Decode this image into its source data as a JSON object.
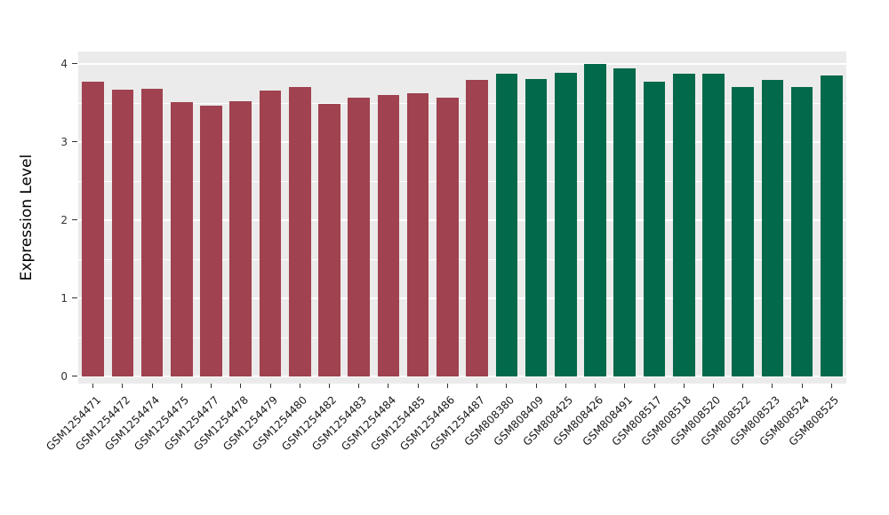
{
  "chart_data": {
    "type": "bar",
    "title": "",
    "xlabel": "",
    "ylabel": "Expression Level",
    "ylim": [
      0,
      4.15
    ],
    "yticks": [
      "0",
      "1",
      "2",
      "3",
      "4"
    ],
    "legend": "none",
    "grid": "white major and minor gridlines on gray panel",
    "panel_background": "#EBEBEB",
    "gridline_color": "#FFFFFF",
    "axis_text_color": "#333333",
    "groups": [
      {
        "name": "GSM1254-series",
        "color": "#A0424F"
      },
      {
        "name": "GSM808-series",
        "color": "#03694B"
      }
    ],
    "bars": [
      {
        "label": "GSM1254471",
        "value": 3.77,
        "group": 0
      },
      {
        "label": "GSM1254472",
        "value": 3.67,
        "group": 0
      },
      {
        "label": "GSM1254474",
        "value": 3.68,
        "group": 0
      },
      {
        "label": "GSM1254475",
        "value": 3.51,
        "group": 0
      },
      {
        "label": "GSM1254477",
        "value": 3.47,
        "group": 0
      },
      {
        "label": "GSM1254478",
        "value": 3.52,
        "group": 0
      },
      {
        "label": "GSM1254479",
        "value": 3.66,
        "group": 0
      },
      {
        "label": "GSM1254480",
        "value": 3.71,
        "group": 0
      },
      {
        "label": "GSM1254482",
        "value": 3.49,
        "group": 0
      },
      {
        "label": "GSM1254483",
        "value": 3.57,
        "group": 0
      },
      {
        "label": "GSM1254484",
        "value": 3.6,
        "group": 0
      },
      {
        "label": "GSM1254485",
        "value": 3.62,
        "group": 0
      },
      {
        "label": "GSM1254486",
        "value": 3.57,
        "group": 0
      },
      {
        "label": "GSM1254487",
        "value": 3.8,
        "group": 0
      },
      {
        "label": "GSM808380",
        "value": 3.87,
        "group": 1
      },
      {
        "label": "GSM808409",
        "value": 3.81,
        "group": 1
      },
      {
        "label": "GSM808425",
        "value": 3.89,
        "group": 1
      },
      {
        "label": "GSM808426",
        "value": 4.0,
        "group": 1
      },
      {
        "label": "GSM808491",
        "value": 3.94,
        "group": 1
      },
      {
        "label": "GSM808517",
        "value": 3.77,
        "group": 1
      },
      {
        "label": "GSM808518",
        "value": 3.87,
        "group": 1
      },
      {
        "label": "GSM808520",
        "value": 3.88,
        "group": 1
      },
      {
        "label": "GSM808522",
        "value": 3.7,
        "group": 1
      },
      {
        "label": "GSM808523",
        "value": 3.8,
        "group": 1
      },
      {
        "label": "GSM808524",
        "value": 3.7,
        "group": 1
      },
      {
        "label": "GSM808525",
        "value": 3.85,
        "group": 1
      }
    ],
    "major_gridlines": [
      0,
      1,
      2,
      3,
      4
    ],
    "minor_gridlines": [
      0.5,
      1.5,
      2.5,
      3.5
    ]
  }
}
